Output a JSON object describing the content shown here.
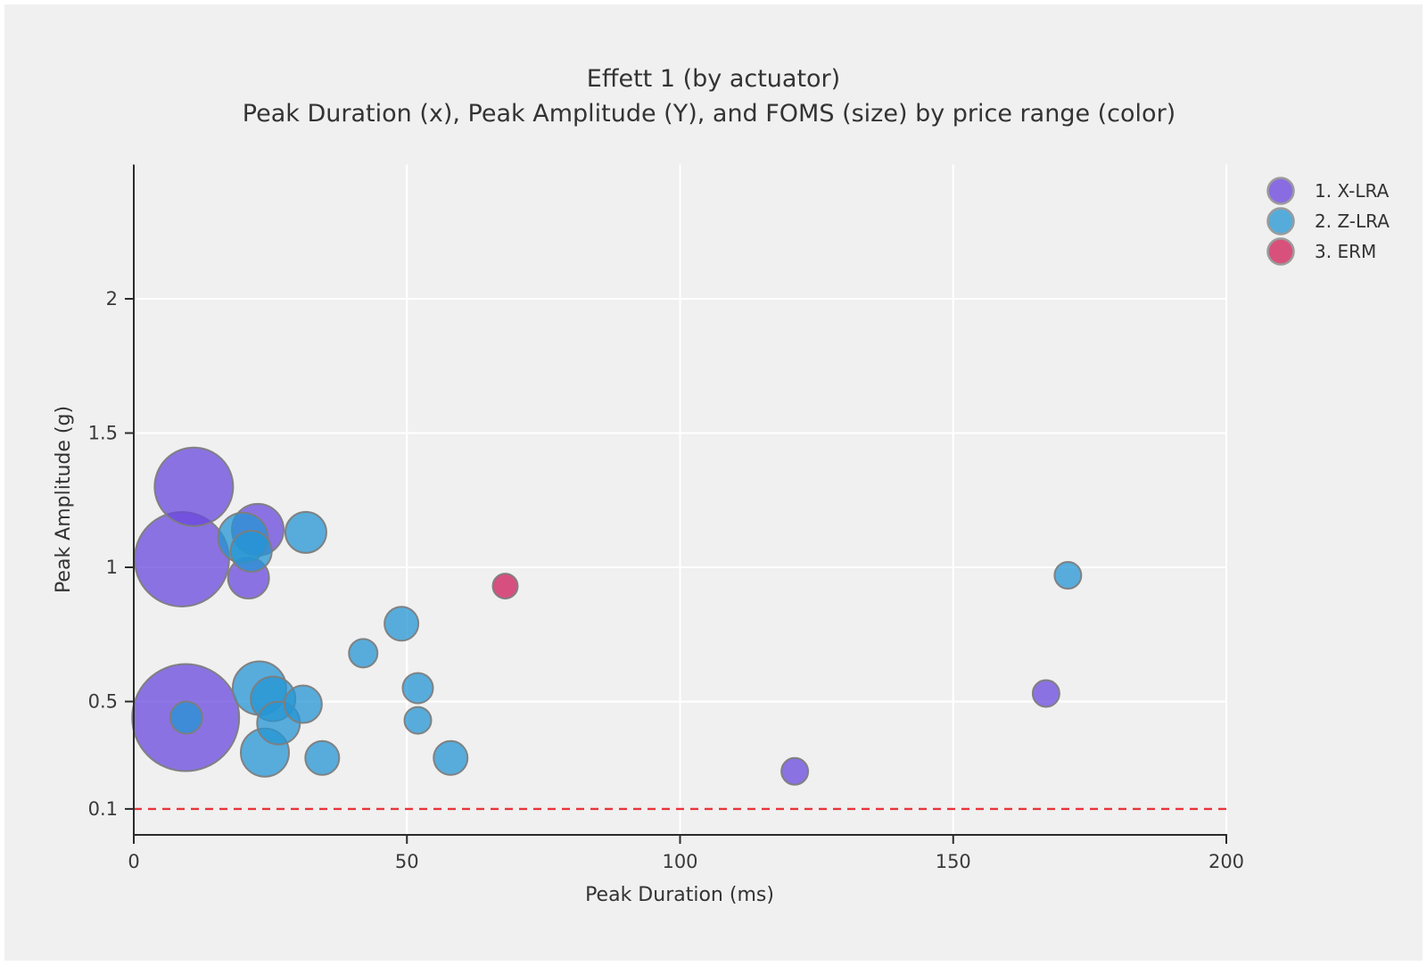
{
  "figure": {
    "title_line1": "Effett 1 (by actuator)",
    "title_line2": "Peak Duration (x), Peak Amplitude (Y), and FOMS (size) by price range (color)"
  },
  "axes": {
    "x": {
      "label": "Peak Duration (ms)"
    },
    "y": {
      "label": "Peak Amplitude (g)"
    }
  },
  "legend": {
    "items": [
      {
        "label": "1. X-LRA",
        "color": "#8a6ce2"
      },
      {
        "label": "2. Z-LRA",
        "color": "#55acdb"
      },
      {
        "label": "3. ERM",
        "color": "#d8517c"
      }
    ]
  },
  "style": {
    "canvas_bg": "#f0f0f0",
    "frame": "#ffffff",
    "gridline": "#ffffff",
    "axis_line": "#2b2b2b",
    "bubble_stroke": "#7d7d7d",
    "threshold_red": "#e8353a",
    "purple_fill": "#6a48de",
    "blue_fill": "#2496d4",
    "pink_fill": "#cd1a59"
  },
  "chart_data": {
    "type": "scatter",
    "subtype": "bubble",
    "title": "Effett 1 (by actuator)",
    "subtitle": "Peak Duration (x), Peak Amplitude (Y), and FOMS (size) by price range (color)",
    "xlabel": "Peak Duration (ms)",
    "ylabel": "Peak Amplitude (g)",
    "xlim": [
      0,
      200
    ],
    "ylim": [
      0,
      2.5
    ],
    "x_ticks": [
      0,
      50,
      100,
      150,
      200
    ],
    "y_ticks": [
      0.1,
      0.5,
      1,
      1.5,
      2
    ],
    "grid": true,
    "legend_position": "top-right",
    "size_encoding": "FOMS",
    "color_encoding": "price range",
    "threshold_line": {
      "y": 0.1,
      "color": "#e8353a",
      "style": "dashed"
    },
    "series": [
      {
        "name": "1. X-LRA",
        "fill": "#6a48de",
        "points": [
          {
            "x": 9.5,
            "y": 0.44,
            "r": 60
          },
          {
            "x": 8.8,
            "y": 1.03,
            "r": 53
          },
          {
            "x": 11,
            "y": 1.3,
            "r": 44
          },
          {
            "x": 22.7,
            "y": 1.14,
            "r": 29
          },
          {
            "x": 21,
            "y": 0.96,
            "r": 23
          },
          {
            "x": 121,
            "y": 0.24,
            "r": 15
          },
          {
            "x": 167,
            "y": 0.53,
            "r": 15
          }
        ]
      },
      {
        "name": "2. Z-LRA",
        "fill": "#2496d4",
        "points": [
          {
            "x": 23,
            "y": 0.55,
            "r": 30
          },
          {
            "x": 20,
            "y": 1.11,
            "r": 28
          },
          {
            "x": 24,
            "y": 0.31,
            "r": 27
          },
          {
            "x": 25.5,
            "y": 0.51,
            "r": 25
          },
          {
            "x": 26.5,
            "y": 0.42,
            "r": 24
          },
          {
            "x": 21.5,
            "y": 1.06,
            "r": 23
          },
          {
            "x": 31.5,
            "y": 1.13,
            "r": 23
          },
          {
            "x": 31,
            "y": 0.49,
            "r": 21
          },
          {
            "x": 34.5,
            "y": 0.29,
            "r": 19
          },
          {
            "x": 49,
            "y": 0.79,
            "r": 19
          },
          {
            "x": 58,
            "y": 0.29,
            "r": 19
          },
          {
            "x": 9.6,
            "y": 0.44,
            "r": 18
          },
          {
            "x": 52,
            "y": 0.55,
            "r": 17
          },
          {
            "x": 42,
            "y": 0.68,
            "r": 16
          },
          {
            "x": 52,
            "y": 0.43,
            "r": 15
          },
          {
            "x": 171,
            "y": 0.97,
            "r": 15
          }
        ]
      },
      {
        "name": "3. ERM",
        "fill": "#cd1a59",
        "points": [
          {
            "x": 68,
            "y": 0.93,
            "r": 14
          }
        ]
      }
    ]
  }
}
